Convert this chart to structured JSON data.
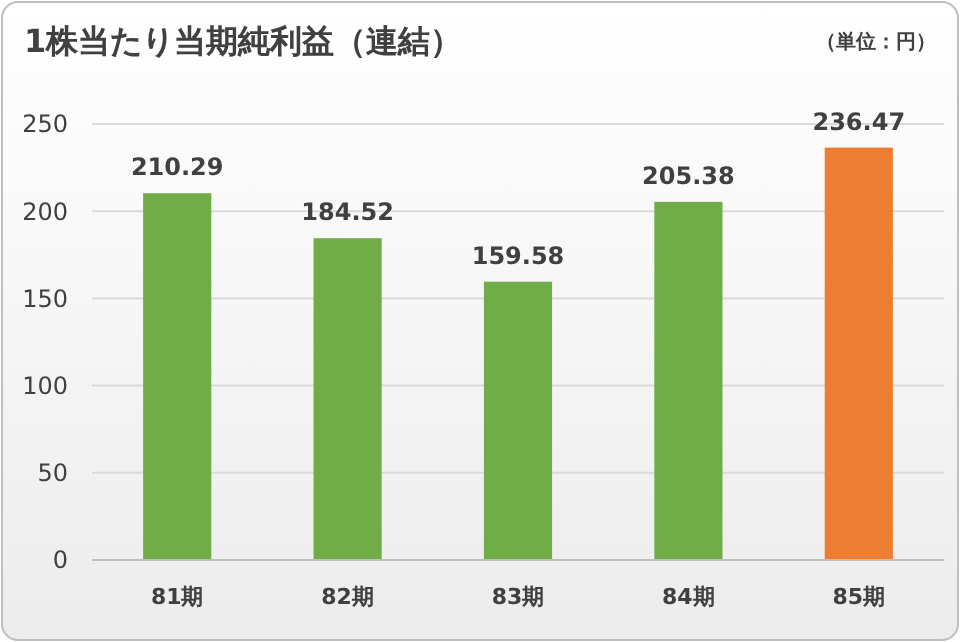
{
  "chart_data": {
    "type": "bar",
    "title": "1株当たり当期純利益（連結）",
    "annotations": [
      "（単位：円）"
    ],
    "categories": [
      "81期",
      "82期",
      "83期",
      "84期",
      "85期"
    ],
    "values": [
      210.29,
      184.52,
      159.58,
      205.38,
      236.47
    ],
    "colors": [
      "#70ad47",
      "#70ad47",
      "#70ad47",
      "#70ad47",
      "#ed7d31"
    ],
    "ylim": [
      0,
      250
    ],
    "yticks": [
      0,
      50,
      100,
      150,
      200,
      250
    ],
    "grid": "y",
    "data_labels": true
  }
}
